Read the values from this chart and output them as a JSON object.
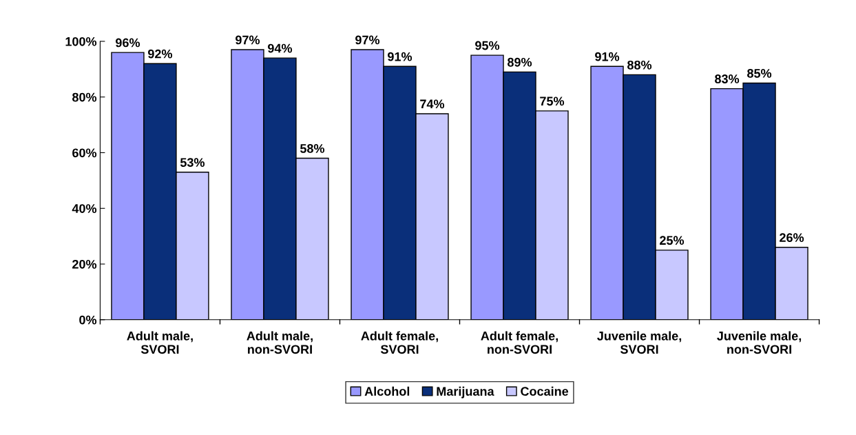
{
  "chart_data": {
    "type": "bar",
    "categories": [
      "Adult male,\nSVORI",
      "Adult male,\nnon-SVORI",
      "Adult female,\nSVORI",
      "Adult female,\nnon-SVORI",
      "Juvenile male,\nSVORI",
      "Juvenile male,\nnon-SVORI"
    ],
    "series": [
      {
        "name": "Alcohol",
        "color": "#9999ff",
        "values": [
          96,
          97,
          97,
          95,
          91,
          83
        ],
        "value_labels": [
          "96%",
          "97%",
          "97%",
          "95%",
          "91%",
          "83%"
        ]
      },
      {
        "name": "Marijuana",
        "color": "#0a2f7a",
        "values": [
          92,
          94,
          91,
          89,
          88,
          85
        ],
        "value_labels": [
          "92%",
          "94%",
          "91%",
          "89%",
          "88%",
          "85%"
        ]
      },
      {
        "name": "Cocaine",
        "color": "#c8c8ff",
        "values": [
          53,
          58,
          74,
          75,
          25,
          26
        ],
        "value_labels": [
          "53%",
          "58%",
          "74%",
          "75%",
          "25%",
          "26%"
        ]
      }
    ],
    "ylim": [
      0,
      100
    ],
    "yticks": [
      {
        "value": 0,
        "label": "0%"
      },
      {
        "value": 20,
        "label": "20%"
      },
      {
        "value": 40,
        "label": "40%"
      },
      {
        "value": 60,
        "label": "60%"
      },
      {
        "value": 80,
        "label": "80%"
      },
      {
        "value": 100,
        "label": "100%"
      }
    ],
    "grid": false,
    "legend": "bottom"
  }
}
